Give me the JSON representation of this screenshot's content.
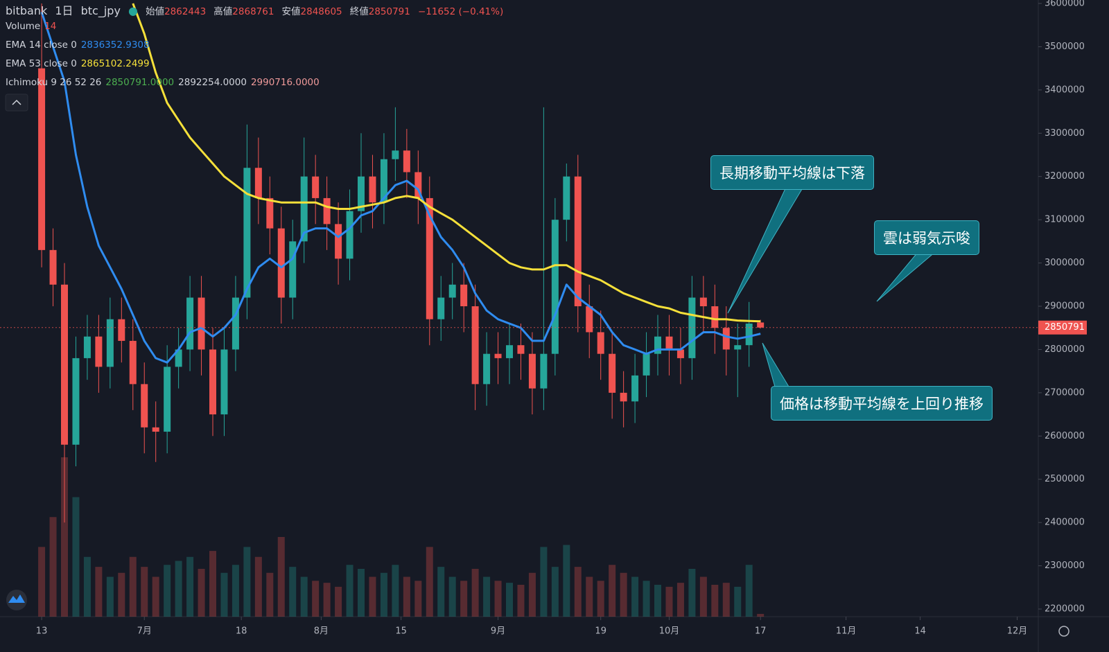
{
  "chart_data": {
    "type": "candlestick",
    "symbol": "bitbank",
    "interval": "1日",
    "pair": "btc_jpy",
    "open_label": "始値",
    "high_label": "高値",
    "low_label": "安値",
    "close_label": "終値",
    "change_label": "−11652 (−0.41%)",
    "volume_name": "Volume",
    "up_color": "#26a69a",
    "down_color": "#ef5350",
    "x": [
      0,
      2,
      4,
      6,
      8,
      10,
      12,
      14,
      16,
      18,
      20,
      22,
      24,
      26,
      28,
      30,
      32,
      34,
      36,
      38,
      40,
      42,
      44,
      46,
      48,
      50,
      52,
      54,
      56,
      58,
      60,
      62,
      64,
      66,
      68,
      70,
      72,
      74,
      76,
      78,
      80,
      82,
      84,
      86,
      88,
      90,
      92,
      94,
      96,
      98,
      100,
      102,
      104,
      106,
      108,
      110,
      112,
      114,
      116,
      118,
      120,
      122,
      124,
      126
    ],
    "open": [
      3450000,
      3030000,
      2950000,
      2580000,
      2780000,
      2830000,
      2760000,
      2870000,
      2820000,
      2720000,
      2620000,
      2610000,
      2760000,
      2800000,
      2920000,
      2800000,
      2650000,
      2800000,
      2920000,
      3220000,
      3150000,
      3080000,
      2920000,
      3050000,
      3200000,
      3150000,
      3090000,
      3010000,
      3120000,
      3200000,
      3140000,
      3240000,
      3260000,
      3210000,
      3150000,
      2870000,
      2920000,
      2950000,
      2900000,
      2720000,
      2790000,
      2780000,
      2810000,
      2790000,
      2710000,
      2790000,
      3100000,
      3200000,
      2900000,
      2840000,
      2790000,
      2700000,
      2680000,
      2740000,
      2790000,
      2830000,
      2800000,
      2780000,
      2920000,
      2900000,
      2850000,
      2800000,
      2810000,
      2862443
    ],
    "high": [
      3600000,
      3080000,
      3000000,
      2830000,
      2880000,
      2880000,
      2920000,
      2920000,
      2870000,
      2770000,
      2680000,
      2810000,
      2850000,
      2970000,
      2970000,
      2850000,
      2850000,
      2970000,
      3320000,
      3290000,
      3200000,
      3130000,
      3100000,
      3290000,
      3250000,
      3200000,
      3140000,
      3170000,
      3300000,
      3250000,
      3300000,
      3360000,
      3310000,
      3260000,
      3200000,
      2970000,
      3000000,
      3000000,
      2950000,
      2840000,
      2840000,
      2860000,
      2860000,
      2840000,
      3360000,
      3150000,
      3230000,
      3250000,
      2950000,
      2890000,
      2840000,
      2750000,
      2790000,
      2840000,
      2880000,
      2880000,
      2850000,
      2970000,
      2970000,
      2950000,
      2900000,
      2860000,
      2910000,
      2868761
    ],
    "low": [
      2990000,
      2900000,
      2400000,
      2530000,
      2730000,
      2700000,
      2710000,
      2770000,
      2660000,
      2560000,
      2540000,
      2560000,
      2710000,
      2750000,
      2740000,
      2600000,
      2600000,
      2750000,
      2870000,
      3090000,
      3020000,
      2860000,
      2870000,
      3000000,
      3090000,
      3030000,
      2950000,
      2960000,
      3070000,
      3080000,
      3090000,
      3190000,
      3150000,
      3090000,
      2810000,
      2820000,
      2870000,
      2840000,
      2660000,
      2670000,
      2720000,
      2720000,
      2730000,
      2650000,
      2660000,
      2740000,
      3050000,
      2840000,
      2780000,
      2730000,
      2640000,
      2620000,
      2630000,
      2690000,
      2740000,
      2740000,
      2720000,
      2730000,
      2840000,
      2790000,
      2740000,
      2690000,
      2760000,
      2848605
    ],
    "close": [
      3030000,
      2950000,
      2580000,
      2780000,
      2830000,
      2760000,
      2870000,
      2820000,
      2720000,
      2620000,
      2610000,
      2760000,
      2800000,
      2920000,
      2800000,
      2650000,
      2800000,
      2920000,
      3220000,
      3150000,
      3080000,
      2920000,
      3050000,
      3200000,
      3150000,
      3090000,
      3010000,
      3120000,
      3200000,
      3140000,
      3240000,
      3260000,
      3210000,
      3150000,
      2870000,
      2920000,
      2950000,
      2900000,
      2720000,
      2790000,
      2780000,
      2810000,
      2790000,
      2710000,
      2790000,
      3100000,
      3200000,
      2900000,
      2840000,
      2790000,
      2700000,
      2680000,
      2740000,
      2790000,
      2830000,
      2800000,
      2780000,
      2920000,
      2900000,
      2850000,
      2800000,
      2810000,
      2860000,
      2850791
    ],
    "volume": [
      350,
      500,
      800,
      600,
      300,
      250,
      200,
      220,
      300,
      250,
      200,
      260,
      280,
      300,
      240,
      330,
      220,
      260,
      350,
      300,
      220,
      400,
      250,
      200,
      180,
      170,
      150,
      260,
      240,
      200,
      220,
      260,
      200,
      180,
      350,
      250,
      200,
      180,
      240,
      200,
      180,
      170,
      160,
      220,
      350,
      250,
      360,
      250,
      200,
      180,
      260,
      220,
      200,
      180,
      160,
      150,
      170,
      240,
      200,
      160,
      170,
      150,
      260,
      14
    ],
    "series": [
      {
        "name": "EMA 14 close 0",
        "color": "#2f8cf0",
        "values": [
          3580000,
          3500000,
          3420000,
          3250000,
          3130000,
          3040000,
          2990000,
          2940000,
          2880000,
          2820000,
          2780000,
          2770000,
          2800000,
          2840000,
          2850000,
          2830000,
          2850000,
          2880000,
          2940000,
          2990000,
          3010000,
          2990000,
          3010000,
          3070000,
          3080000,
          3080000,
          3060000,
          3080000,
          3110000,
          3120000,
          3150000,
          3180000,
          3190000,
          3170000,
          3110000,
          3060000,
          3030000,
          2990000,
          2930000,
          2890000,
          2870000,
          2860000,
          2850000,
          2820000,
          2820000,
          2880000,
          2950000,
          2920000,
          2900000,
          2880000,
          2840000,
          2810000,
          2800000,
          2790000,
          2800000,
          2800000,
          2800000,
          2820000,
          2840000,
          2840000,
          2830000,
          2825000,
          2830000,
          2836352.9308
        ]
      },
      {
        "name": "EMA 53 close 0",
        "color": "#f5e03a",
        "values": [
          null,
          null,
          null,
          null,
          null,
          null,
          null,
          null,
          3600000,
          3530000,
          3440000,
          3370000,
          3330000,
          3290000,
          3260000,
          3230000,
          3200000,
          3180000,
          3160000,
          3150000,
          3145000,
          3140000,
          3140000,
          3140000,
          3140000,
          3130000,
          3125000,
          3125000,
          3130000,
          3135000,
          3140000,
          3150000,
          3155000,
          3150000,
          3130000,
          3115000,
          3100000,
          3080000,
          3060000,
          3040000,
          3020000,
          3000000,
          2990000,
          2985000,
          2985000,
          2995000,
          2995000,
          2980000,
          2970000,
          2960000,
          2945000,
          2930000,
          2920000,
          2910000,
          2900000,
          2895000,
          2885000,
          2880000,
          2875000,
          2870000,
          2870000,
          2867000,
          2866000,
          2865102.2499
        ]
      }
    ],
    "ichimoku_name": "Ichimoku 9 26 52 26",
    "ichimoku_labels": [
      "2850791.0000",
      "2892254.0000",
      "2990716.0000"
    ],
    "ichimoku_colors": [
      "#4caf50",
      "#d1d4dc",
      "#ef9a9a"
    ],
    "xlim": [
      -7.3,
      174.7
    ],
    "xticks": [
      {
        "value": 0,
        "label": "13"
      },
      {
        "value": 18,
        "label": "7月"
      },
      {
        "value": 35,
        "label": "18"
      },
      {
        "value": 49,
        "label": "8月"
      },
      {
        "value": 63,
        "label": "15"
      },
      {
        "value": 80,
        "label": "9月"
      },
      {
        "value": 98,
        "label": "19"
      },
      {
        "value": 110,
        "label": "10月"
      },
      {
        "value": 126,
        "label": "17"
      },
      {
        "value": 141,
        "label": "11月"
      },
      {
        "value": 154,
        "label": "14"
      },
      {
        "value": 171,
        "label": "12月"
      }
    ],
    "ylim": [
      2182400,
      3608000
    ],
    "yticks": [
      2200000,
      2300000,
      2400000,
      2500000,
      2600000,
      2700000,
      2800000,
      2900000,
      3000000,
      3100000,
      3200000,
      3300000,
      3400000,
      3500000,
      3600000
    ],
    "grid": false,
    "annotations": [
      "長期移動平均線は下落",
      "雲は弱気示唆",
      "価格は移動平均線を上回り推移"
    ]
  }
}
